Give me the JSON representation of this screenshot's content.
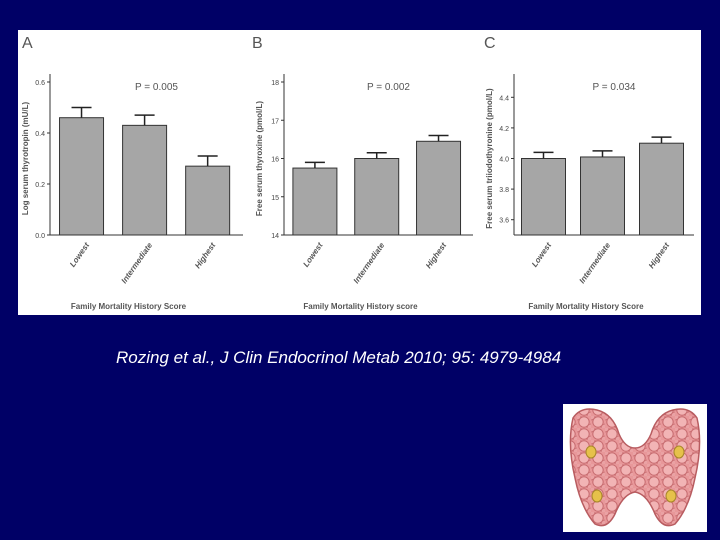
{
  "theme": {
    "background": "#000066",
    "bar_fill": "#a6a6a6",
    "bar_stroke": "#333333",
    "text": "#ffffff"
  },
  "chart_data": [
    {
      "type": "bar",
      "panel_letter": "A",
      "annotation": "P = 0.005",
      "categories": [
        "Lowest",
        "Intermediate",
        "Highest"
      ],
      "values": [
        0.46,
        0.43,
        0.27
      ],
      "error": [
        0.04,
        0.04,
        0.04
      ],
      "ylabel": "Log serum thyrotropin (mU/L)",
      "xlabel": "Family Mortality History Score",
      "yticks": [
        "0.0",
        "0.2",
        "0.4",
        "0.6"
      ],
      "ylim": [
        0,
        0.6
      ]
    },
    {
      "type": "bar",
      "panel_letter": "B",
      "annotation": "P = 0.002",
      "categories": [
        "Lowest",
        "Intermediate",
        "Highest"
      ],
      "values": [
        15.75,
        16.0,
        16.45
      ],
      "error": [
        0.15,
        0.15,
        0.15
      ],
      "ylabel": "Free serum thyroxine (pmol/L)",
      "xlabel": "Family Mortality History score",
      "yticks": [
        "14",
        "15",
        "16",
        "17",
        "18"
      ],
      "ylim": [
        14,
        18
      ]
    },
    {
      "type": "bar",
      "panel_letter": "C",
      "annotation": "P = 0.034",
      "categories": [
        "Lowest",
        "Intermediate",
        "Highest"
      ],
      "values": [
        4.0,
        4.01,
        4.1
      ],
      "error": [
        0.04,
        0.04,
        0.04
      ],
      "ylabel": "Free serum triiodothyronine (pmol/L)",
      "xlabel": "Family Mortality History Score",
      "yticks": [
        "3.6",
        "3.8",
        "4.0",
        "4.2",
        "4.4"
      ],
      "ylim": [
        3.5,
        4.5
      ]
    }
  ],
  "citation": "Rozing et al., J Clin Endocrinol Metab 2010; 95: 4979-4984",
  "image": {
    "subject": "thyroid-gland-illustration"
  }
}
